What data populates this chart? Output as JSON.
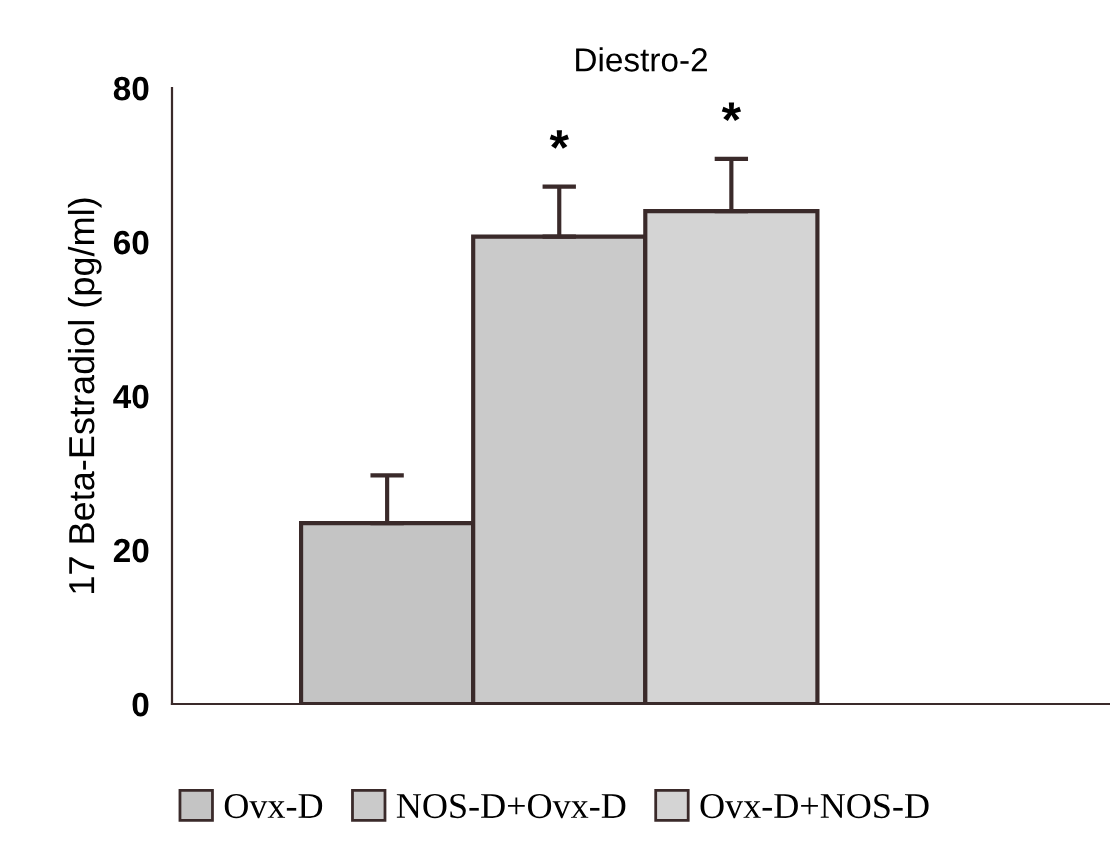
{
  "chart_data": {
    "type": "bar",
    "title": "Diestro-2",
    "ylabel": "17 Beta-Estradiol (pg/ml)",
    "categories": [
      null
    ],
    "series": [
      {
        "name": "Ovx-D",
        "color": "#c4c4c4",
        "values": [
          23.5
        ],
        "errors": [
          [
            23.5,
            29.7
          ]
        ]
      },
      {
        "name": "NOS-D+Ovx-D",
        "color": "#cacaca",
        "values": [
          60.7
        ],
        "errors": [
          [
            60.7,
            67.2
          ]
        ]
      },
      {
        "name": "Ovx-D+NOS-D",
        "color": "#d4d4d4",
        "values": [
          64.0
        ],
        "errors": [
          [
            64.0,
            70.8
          ]
        ]
      }
    ],
    "annotations": [
      "*",
      "*"
    ],
    "ylim": [
      0,
      80
    ],
    "yticks": [
      0,
      20,
      40,
      60,
      80
    ],
    "grid": false,
    "legend": "bottom"
  }
}
